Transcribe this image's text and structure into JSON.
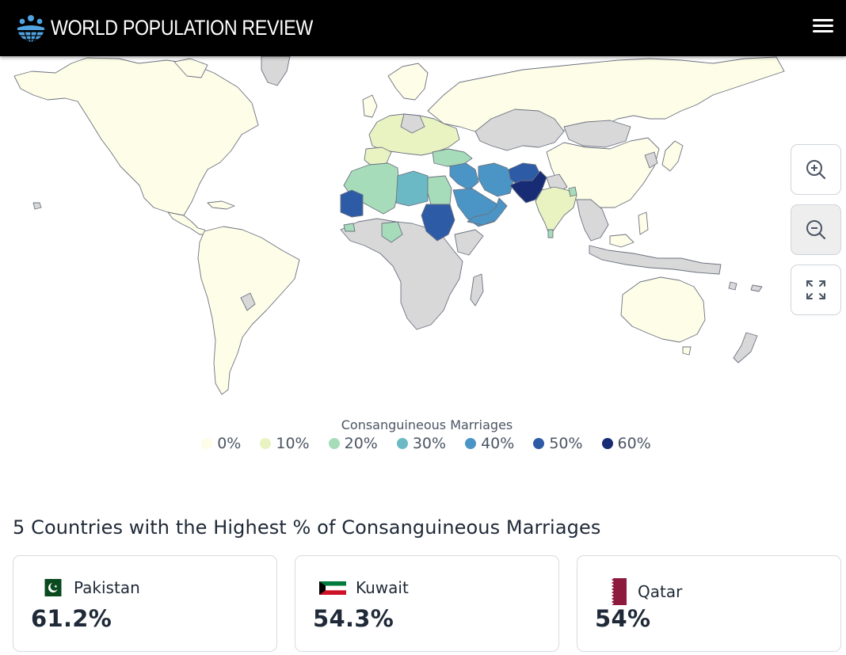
{
  "header": {
    "brand": "WORLD POPULATION REVIEW",
    "logo_icon": "globe-people-icon",
    "menu_icon": "hamburger-menu-icon"
  },
  "map": {
    "controls": [
      {
        "name": "zoom-in-button",
        "icon": "zoom-in-icon"
      },
      {
        "name": "zoom-out-button",
        "icon": "zoom-out-icon"
      },
      {
        "name": "fullscreen-button",
        "icon": "expand-icon"
      }
    ],
    "colors": {
      "no_data": "#d8d8d8",
      "ocean": "#ffffff",
      "border": "#6b7280"
    }
  },
  "legend": {
    "title": "Consanguineous Marriages",
    "items": [
      {
        "label": "0%",
        "color": "#fefde7"
      },
      {
        "label": "10%",
        "color": "#e9f3c2"
      },
      {
        "label": "20%",
        "color": "#a7dcba"
      },
      {
        "label": "30%",
        "color": "#6bb9c5"
      },
      {
        "label": "40%",
        "color": "#4b95c6"
      },
      {
        "label": "50%",
        "color": "#2d5ba6"
      },
      {
        "label": "60%",
        "color": "#172c75"
      }
    ]
  },
  "section": {
    "title": "5 Countries with the Highest % of Consanguineous Marriages"
  },
  "cards": [
    {
      "country": "Pakistan",
      "value": "61.2%",
      "flag": "pakistan-flag-icon"
    },
    {
      "country": "Kuwait",
      "value": "54.3%",
      "flag": "kuwait-flag-icon"
    },
    {
      "country": "Qatar",
      "value": "54%",
      "flag": "qatar-flag-icon"
    }
  ]
}
